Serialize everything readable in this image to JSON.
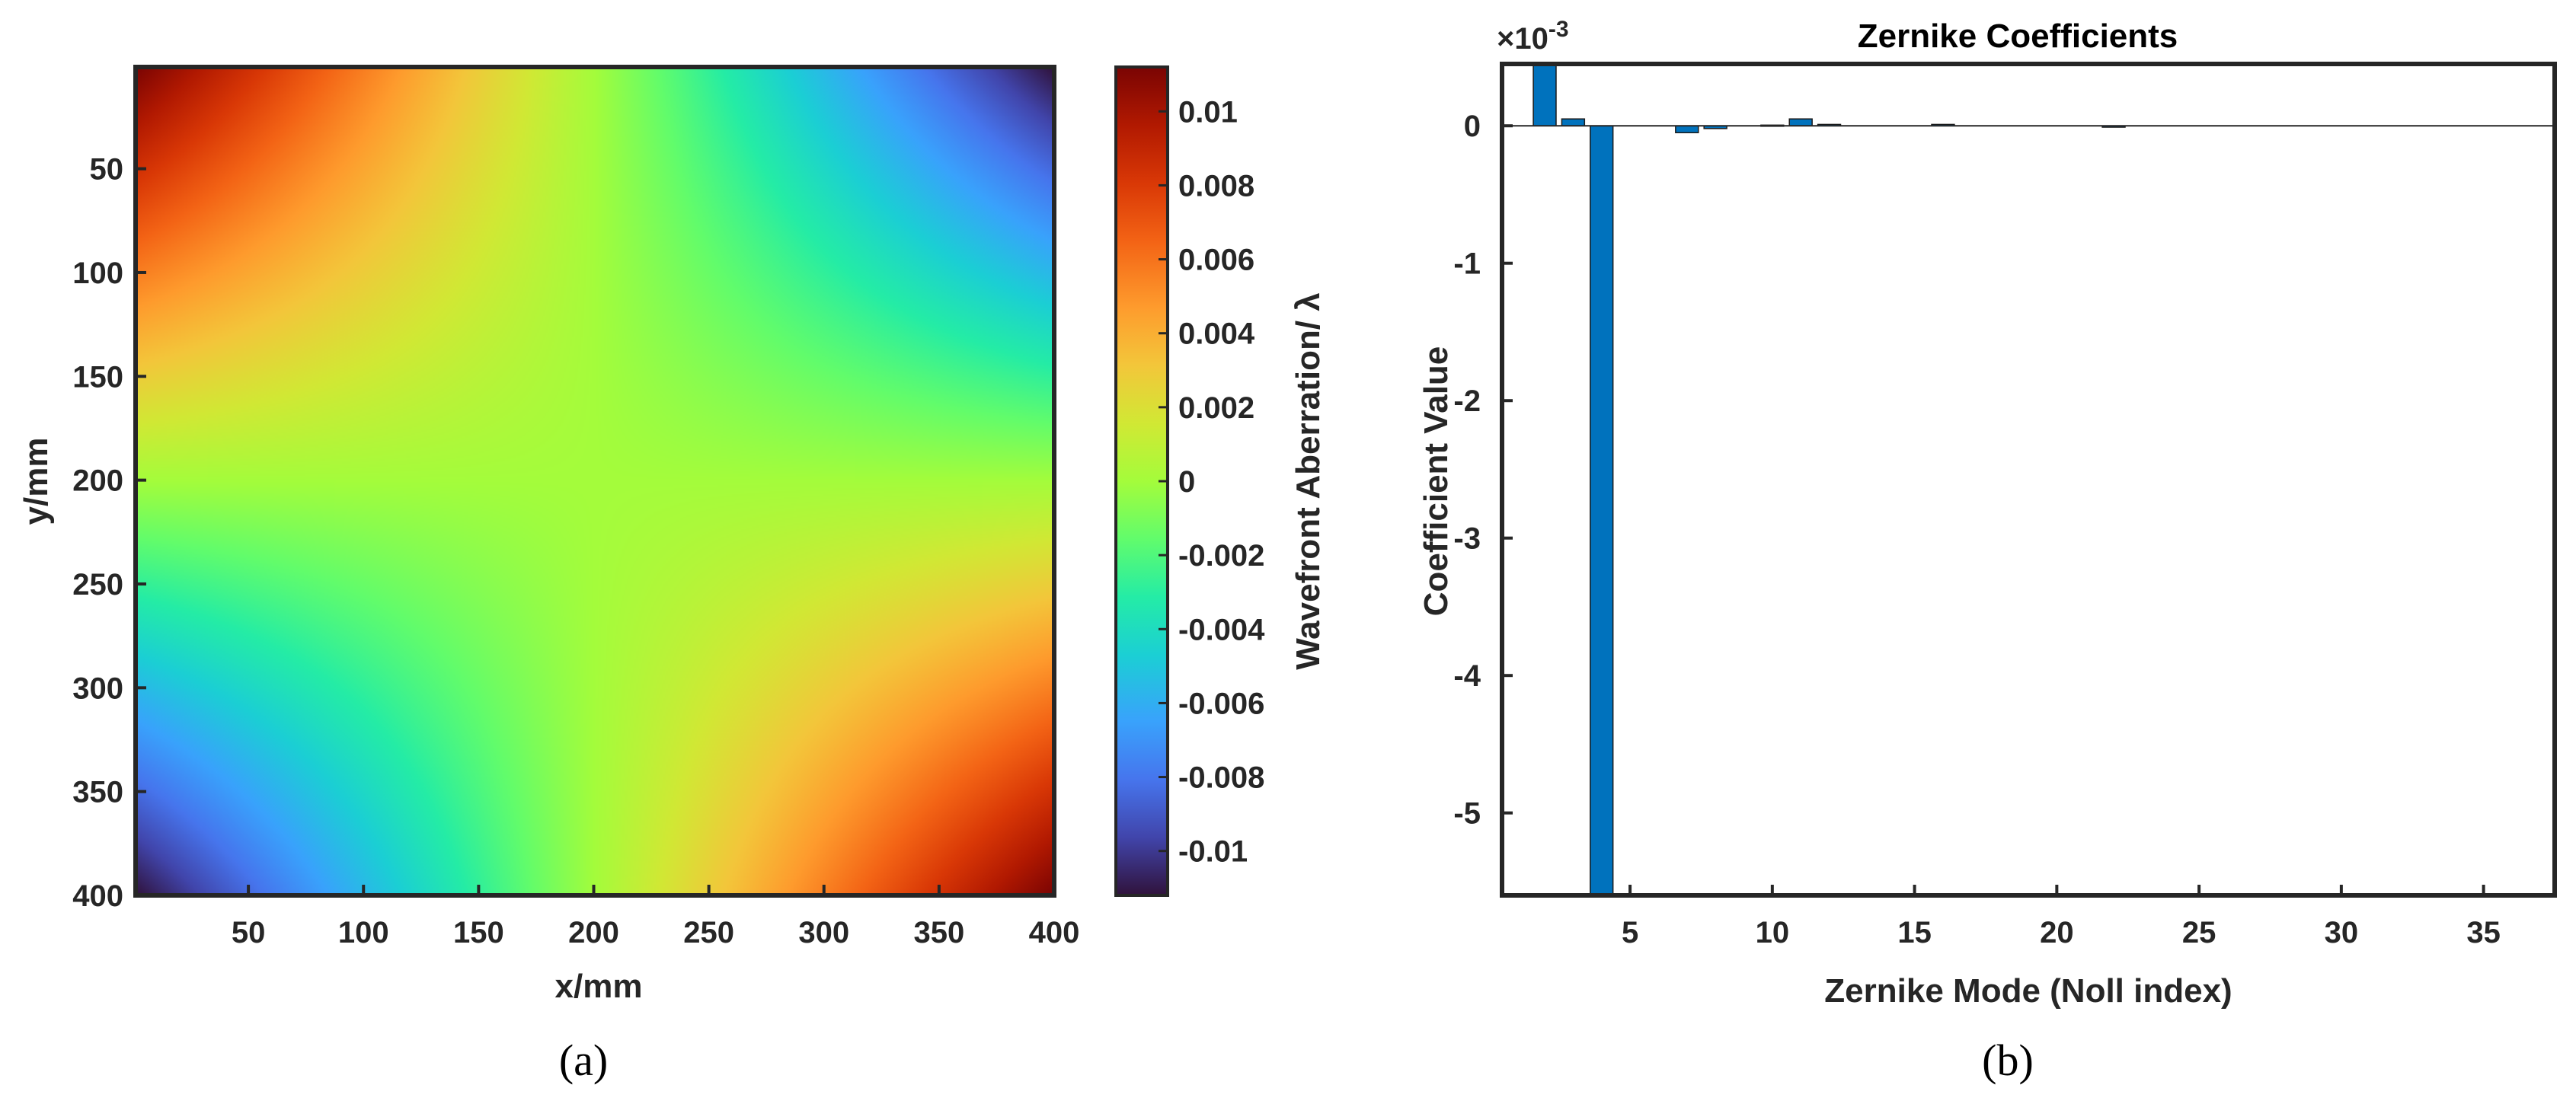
{
  "panels": {
    "a_caption": "(a)",
    "b_caption": "(b)"
  },
  "chart_data": [
    {
      "type": "heatmap",
      "title": "",
      "xlabel": "x/mm",
      "ylabel": "y/mm",
      "xlim": [
        1,
        400
      ],
      "ylim": [
        1,
        400
      ],
      "y_axis_direction": "reversed",
      "x_ticks": [
        50,
        100,
        150,
        200,
        250,
        300,
        350,
        400
      ],
      "y_ticks": [
        50,
        100,
        150,
        200,
        250,
        300,
        350,
        400
      ],
      "colormap": "turbo",
      "colorbar": {
        "label": "Wavefront Aberration/ λ",
        "range": [
          -0.0112,
          0.0112
        ],
        "ticks": [
          0.01,
          0.008,
          0.006,
          0.004,
          0.002,
          0,
          -0.002,
          -0.004,
          -0.006,
          -0.008,
          -0.01
        ],
        "tick_labels": [
          "0.01",
          "0.008",
          "0.006",
          "0.004",
          "0.002",
          "0",
          "-0.002",
          "-0.004",
          "-0.006",
          "-0.008",
          "-0.01"
        ]
      },
      "field_corners": {
        "top_left": 0.0112,
        "top_right": -0.0112,
        "bottom_left": -0.0112,
        "bottom_right": 0.0112,
        "center": 0
      },
      "grid": false
    },
    {
      "type": "bar",
      "title": "Zernike Coefficients",
      "xlabel": "Zernike Mode (Noll index)",
      "ylabel": "Coefficient Value",
      "y_multiplier_label": "×10",
      "y_multiplier_exponent": "-3",
      "xlim": [
        0.5,
        37.5
      ],
      "ylim": [
        -5.6,
        0.45
      ],
      "x_ticks": [
        5,
        10,
        15,
        20,
        25,
        30,
        35
      ],
      "y_ticks": [
        0,
        -1,
        -2,
        -3,
        -4,
        -5
      ],
      "y_tick_labels": [
        "0",
        "-1",
        "-2",
        "-3",
        "-4",
        "-5"
      ],
      "bar_color": "#0072bd",
      "x": [
        1,
        2,
        3,
        4,
        5,
        6,
        7,
        8,
        9,
        10,
        11,
        12,
        13,
        14,
        15,
        16,
        17,
        18,
        19,
        20,
        21,
        22,
        23,
        24,
        25,
        26,
        27,
        28,
        29,
        30,
        31,
        32,
        33,
        34,
        35,
        36,
        37
      ],
      "values": [
        0,
        0.6,
        0.05,
        -5.6,
        0,
        0,
        -0.05,
        -0.02,
        0,
        0.005,
        0.05,
        0.01,
        0,
        0,
        0,
        0.01,
        0,
        0,
        0,
        0,
        0,
        -0.01,
        0,
        0,
        0,
        0,
        0,
        0,
        0,
        0,
        0,
        0,
        0,
        0,
        0,
        0,
        0
      ],
      "grid": false
    }
  ]
}
